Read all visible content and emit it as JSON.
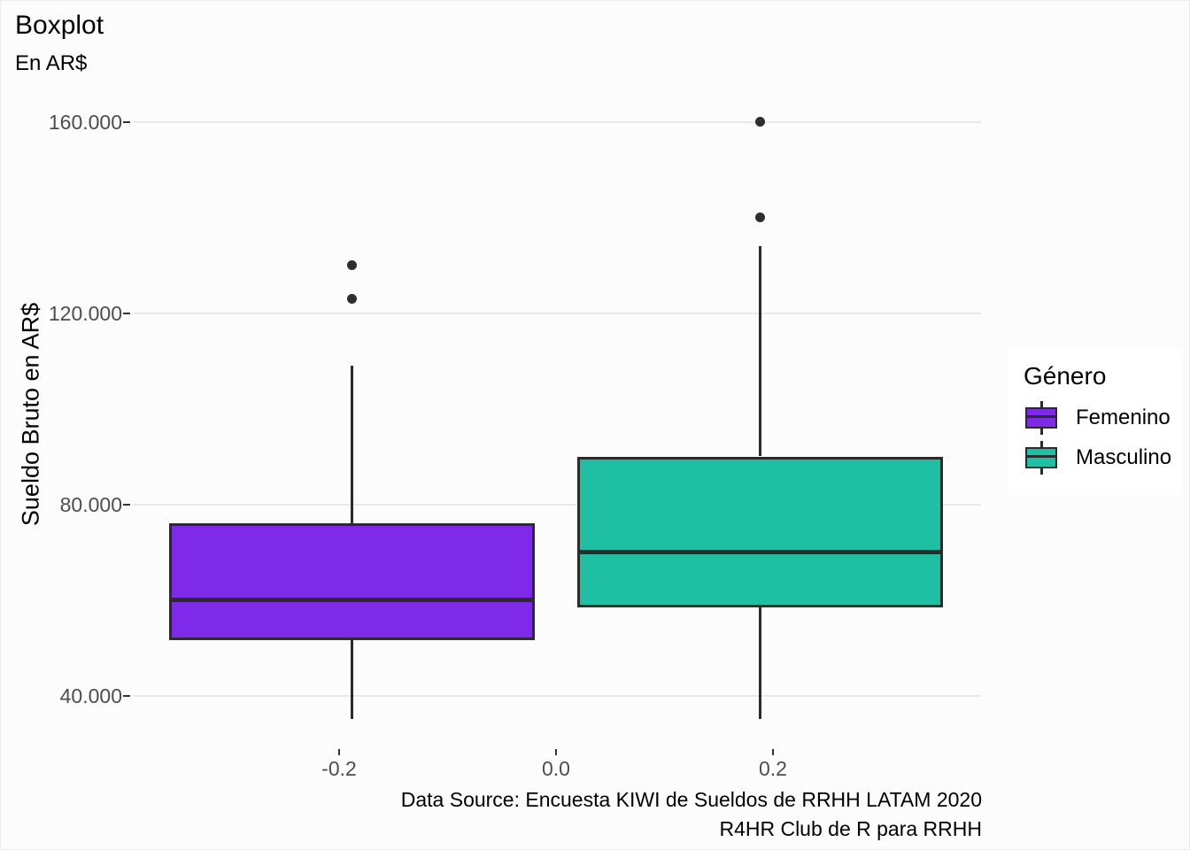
{
  "chart_data": {
    "type": "boxplot",
    "title": "Boxplot",
    "subtitle": "En AR$",
    "ylabel": "Sueldo Bruto en AR$",
    "xlabel": "",
    "caption": [
      "Data Source: Encuesta KIWI de Sueldos de RRHH LATAM 2020",
      "R4HR Club de R para RRHH"
    ],
    "legend": {
      "title": "Género",
      "position": "right",
      "entries": [
        {
          "label": "Femenino",
          "color": "#7E2AE8"
        },
        {
          "label": "Masculino",
          "color": "#1FBFA4"
        }
      ]
    },
    "x_ticks": [
      {
        "value": -0.2,
        "label": "-0.2"
      },
      {
        "value": 0.0,
        "label": "0.0"
      },
      {
        "value": 0.2,
        "label": "0.2"
      }
    ],
    "y_ticks": [
      {
        "value": 40000,
        "label": "40.000"
      },
      {
        "value": 80000,
        "label": "80.000"
      },
      {
        "value": 120000,
        "label": "120.000"
      },
      {
        "value": 160000,
        "label": "160.000"
      }
    ],
    "ylim": [
      33000,
      163000
    ],
    "grid": "horizontal-major-only",
    "series": [
      {
        "name": "Femenino",
        "group_x": -0.188,
        "fill": "#7E2AE8",
        "q1": 51500,
        "median": 60000,
        "q3": 76000,
        "whisker_low": 35000,
        "whisker_high": 109000,
        "outliers": [
          123000,
          130000
        ]
      },
      {
        "name": "Masculino",
        "group_x": 0.188,
        "fill": "#1FBFA4",
        "q1": 58500,
        "median": 70000,
        "q3": 90000,
        "whisker_low": 35000,
        "whisker_high": 134000,
        "outliers": [
          140000,
          160000
        ]
      }
    ],
    "colors": {
      "box_border": "#2B2B2B",
      "grid": "#E9E9E9",
      "axis_text": "#4D4D4D",
      "tick_mark": "#333333",
      "background": "#FBFCFB",
      "legend_background": "#FFFFFF"
    }
  }
}
